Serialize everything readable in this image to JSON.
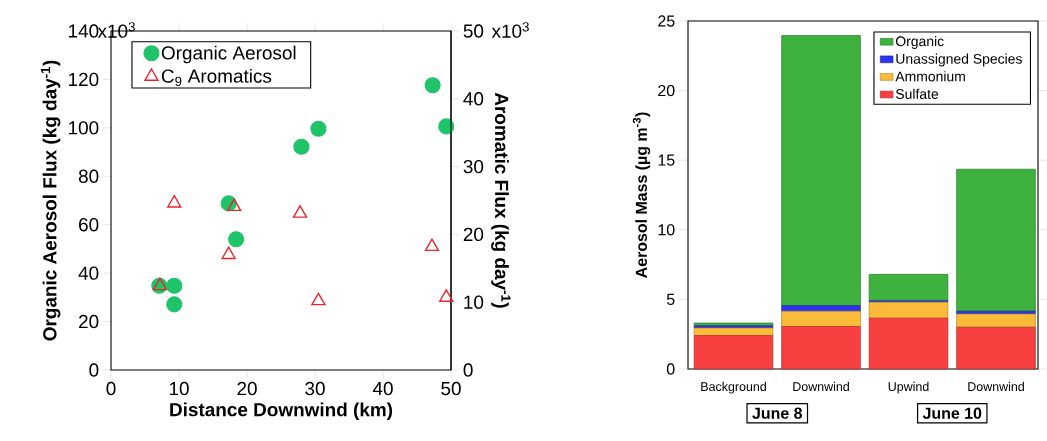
{
  "chart_data": [
    {
      "type": "scatter",
      "xlabel": "Distance Downwind (km)",
      "ylabel": "Organic Aerosol Flux (kg day$^{-1}$)",
      "y2label": "Aromatic Flux (kg day$^{-1}$)",
      "xlim": [
        0,
        50
      ],
      "xticks": [
        0,
        10,
        20,
        30,
        40,
        50
      ],
      "ylim": [
        0,
        140
      ],
      "yticks": [
        0,
        20,
        40,
        60,
        80,
        100,
        120,
        140
      ],
      "y2lim": [
        0,
        50
      ],
      "y2ticks": [
        0,
        10,
        20,
        30,
        40,
        50
      ],
      "annotations": [
        "x10$^{3}$",
        "x10$^{3}$"
      ],
      "legend": "top left",
      "series": [
        {
          "name": "Organic Aerosol",
          "color": "#1fc46a",
          "marker": "circle",
          "x": [
            7.1,
            9.3,
            9.3,
            17.3,
            18.4,
            28.0,
            30.5,
            47.3,
            49.3
          ],
          "values": [
            34.8,
            34.8,
            27.1,
            68.8,
            54,
            92.2,
            99.6,
            117.6,
            100.6
          ]
        },
        {
          "name": "C$_{9}$ Aromatics",
          "color": "#e8252b",
          "marker": "triangle",
          "axis": "y2",
          "x": [
            7.2,
            9.3,
            17.3,
            18.1,
            27.8,
            30.5,
            47.2,
            49.3
          ],
          "values": [
            12.4,
            24.6,
            17.0,
            24.1,
            23.1,
            10.2,
            18.2,
            10.7
          ]
        }
      ]
    },
    {
      "type": "bar",
      "stacked": true,
      "ylabel": "Aerosol Mass (µg m$^{-3}$)",
      "categories": [
        "Background",
        "Downwind",
        "Upwind",
        "Downwind"
      ],
      "ylim": [
        0,
        25
      ],
      "yticks": [
        0,
        5,
        10,
        15,
        20,
        25
      ],
      "legend": "top right",
      "annotations": [
        "June 8",
        "June 10"
      ],
      "series": [
        {
          "name": "Sulfate",
          "color": "#f84040",
          "values": [
            2.4,
            3.05,
            3.65,
            3.0
          ]
        },
        {
          "name": "Ammonium",
          "color": "#fbbb3a",
          "values": [
            0.55,
            1.1,
            1.15,
            0.95
          ]
        },
        {
          "name": "Unassigned Species",
          "color": "#2b35f0",
          "values": [
            0.15,
            0.4,
            0.1,
            0.2
          ]
        },
        {
          "name": "Organic",
          "color": "#3eb13e",
          "values": [
            0.2,
            19.4,
            1.9,
            10.2
          ]
        }
      ]
    }
  ]
}
